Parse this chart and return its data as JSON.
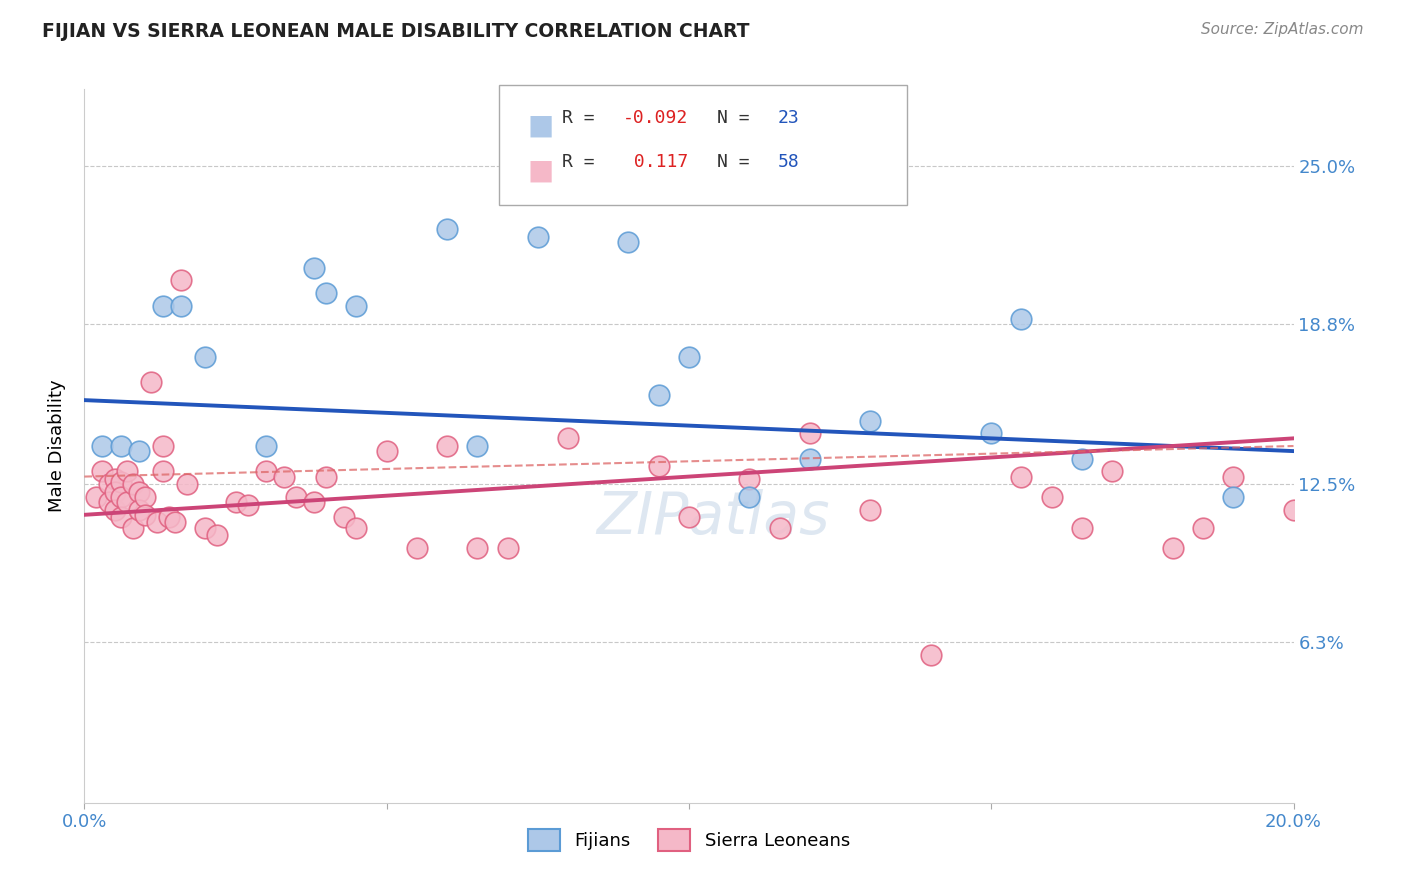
{
  "title": "FIJIAN VS SIERRA LEONEAN MALE DISABILITY CORRELATION CHART",
  "source": "Source: ZipAtlas.com",
  "ylabel_label": "Male Disability",
  "xlim": [
    0.0,
    0.2
  ],
  "ylim": [
    0.0,
    0.28
  ],
  "ytick_values": [
    0.063,
    0.125,
    0.188,
    0.25
  ],
  "ytick_labels": [
    "6.3%",
    "12.5%",
    "18.8%",
    "25.0%"
  ],
  "fijian_R": -0.092,
  "fijian_N": 23,
  "sierra_R": 0.117,
  "sierra_N": 58,
  "fijian_color": "#adc8e8",
  "sierra_color": "#f5b8c8",
  "fijian_edge_color": "#5b9bd5",
  "sierra_edge_color": "#e06080",
  "fijian_line_color": "#2255bb",
  "sierra_line_color": "#cc4477",
  "dashed_line_color": "#dd6666",
  "fijian_scatter_x": [
    0.003,
    0.006,
    0.009,
    0.013,
    0.016,
    0.02,
    0.03,
    0.038,
    0.04,
    0.045,
    0.06,
    0.065,
    0.075,
    0.09,
    0.095,
    0.1,
    0.11,
    0.12,
    0.13,
    0.15,
    0.155,
    0.165,
    0.19
  ],
  "fijian_scatter_y": [
    0.14,
    0.14,
    0.138,
    0.195,
    0.195,
    0.175,
    0.14,
    0.21,
    0.2,
    0.195,
    0.225,
    0.14,
    0.222,
    0.22,
    0.16,
    0.175,
    0.12,
    0.135,
    0.15,
    0.145,
    0.19,
    0.135,
    0.12
  ],
  "sierra_scatter_x": [
    0.002,
    0.003,
    0.004,
    0.004,
    0.005,
    0.005,
    0.005,
    0.006,
    0.006,
    0.006,
    0.007,
    0.007,
    0.008,
    0.008,
    0.009,
    0.009,
    0.01,
    0.01,
    0.011,
    0.012,
    0.013,
    0.013,
    0.014,
    0.015,
    0.016,
    0.017,
    0.02,
    0.022,
    0.025,
    0.027,
    0.03,
    0.033,
    0.035,
    0.038,
    0.04,
    0.043,
    0.045,
    0.05,
    0.055,
    0.06,
    0.065,
    0.07,
    0.08,
    0.095,
    0.1,
    0.11,
    0.115,
    0.12,
    0.13,
    0.14,
    0.155,
    0.16,
    0.165,
    0.17,
    0.18,
    0.185,
    0.19,
    0.2
  ],
  "sierra_scatter_y": [
    0.12,
    0.13,
    0.125,
    0.118,
    0.127,
    0.122,
    0.115,
    0.126,
    0.12,
    0.112,
    0.13,
    0.118,
    0.108,
    0.125,
    0.122,
    0.115,
    0.12,
    0.113,
    0.165,
    0.11,
    0.14,
    0.13,
    0.112,
    0.11,
    0.205,
    0.125,
    0.108,
    0.105,
    0.118,
    0.117,
    0.13,
    0.128,
    0.12,
    0.118,
    0.128,
    0.112,
    0.108,
    0.138,
    0.1,
    0.14,
    0.1,
    0.1,
    0.143,
    0.132,
    0.112,
    0.127,
    0.108,
    0.145,
    0.115,
    0.058,
    0.128,
    0.12,
    0.108,
    0.13,
    0.1,
    0.108,
    0.128,
    0.115
  ],
  "fijian_line_x0": 0.0,
  "fijian_line_y0": 0.158,
  "fijian_line_x1": 0.2,
  "fijian_line_y1": 0.138,
  "sierra_line_x0": 0.0,
  "sierra_line_y0": 0.113,
  "sierra_line_x1": 0.2,
  "sierra_line_y1": 0.143,
  "dashed_line_x0": 0.0,
  "dashed_line_y0": 0.128,
  "dashed_line_x1": 0.2,
  "dashed_line_y1": 0.14,
  "background_color": "#ffffff",
  "grid_color": "#c8c8c8"
}
